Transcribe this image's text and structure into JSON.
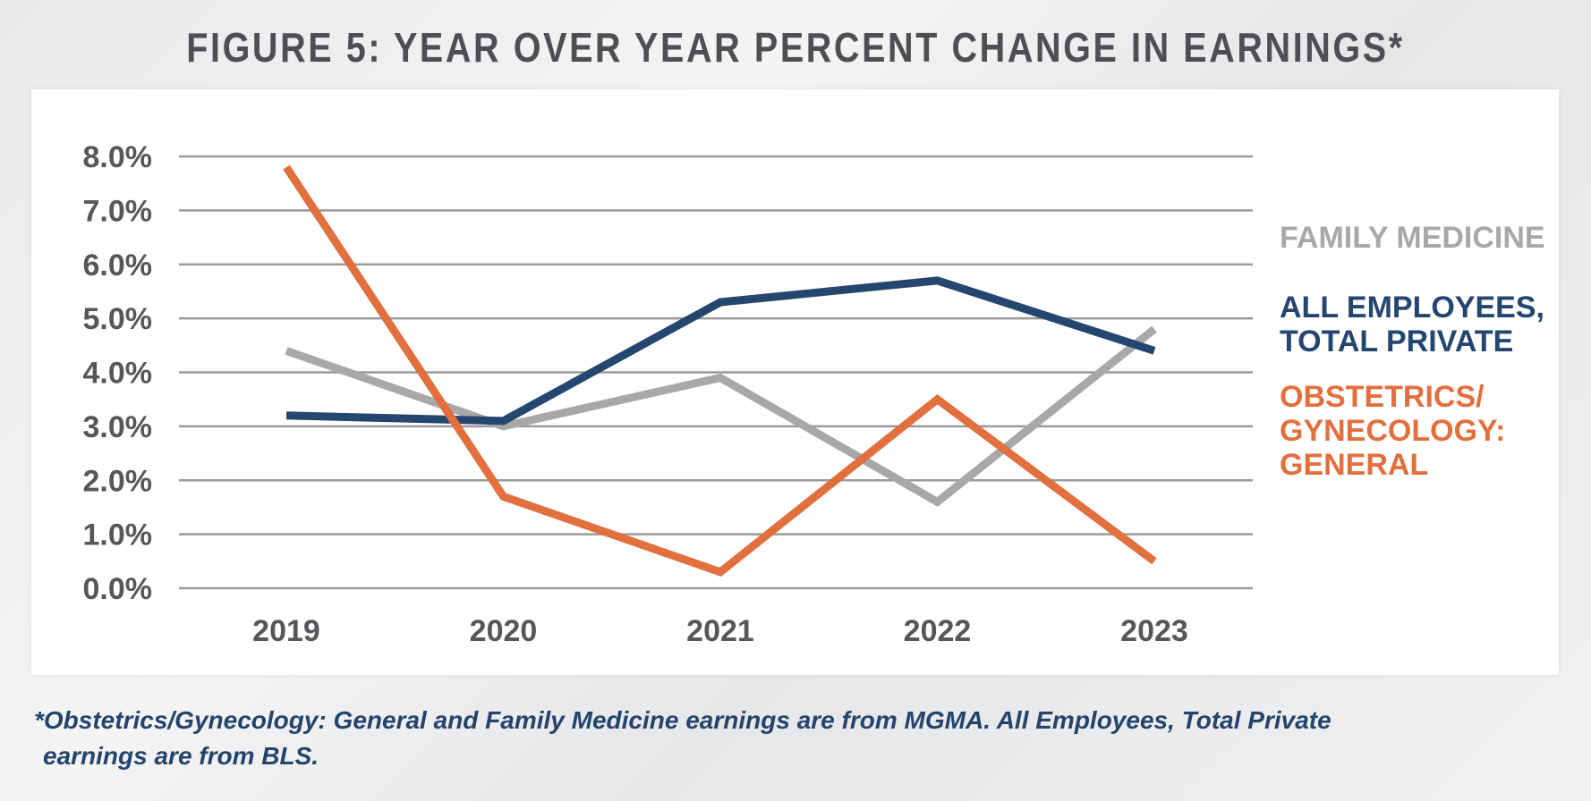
{
  "title": "FIGURE 5: YEAR OVER YEAR PERCENT CHANGE IN EARNINGS*",
  "footnote": {
    "line1": "*Obstetrics/Gynecology: General and Family Medicine earnings are from MGMA. All Employees, Total Private",
    "line2": "earnings are from BLS."
  },
  "colors": {
    "family": "#a7a8aa",
    "employees": "#24466f",
    "obgyn": "#e2703f",
    "grid": "#9a9a9a"
  },
  "legend": {
    "family": [
      "FAMILY MEDICINE"
    ],
    "employees": [
      "ALL EMPLOYEES,",
      "TOTAL PRIVATE"
    ],
    "obgyn": [
      "OBSTETRICS/",
      "GYNECOLOGY:",
      "GENERAL"
    ]
  },
  "chart_data": {
    "type": "line",
    "title": "FIGURE 5: YEAR OVER YEAR PERCENT CHANGE IN EARNINGS*",
    "xlabel": "",
    "ylabel": "",
    "categories": [
      "2019",
      "2020",
      "2021",
      "2022",
      "2023"
    ],
    "yticks": [
      "0.0%",
      "1.0%",
      "2.0%",
      "3.0%",
      "4.0%",
      "5.0%",
      "6.0%",
      "7.0%",
      "8.0%"
    ],
    "ylim": [
      0,
      8
    ],
    "grid": true,
    "legend_position": "right",
    "series": [
      {
        "name": "FAMILY MEDICINE",
        "key": "family",
        "values": [
          4.4,
          3.0,
          3.9,
          1.6,
          4.8
        ]
      },
      {
        "name": "ALL EMPLOYEES, TOTAL PRIVATE",
        "key": "employees",
        "values": [
          3.2,
          3.1,
          5.3,
          5.7,
          4.4
        ]
      },
      {
        "name": "OBSTETRICS/GYNECOLOGY: GENERAL",
        "key": "obgyn",
        "values": [
          7.8,
          1.7,
          0.3,
          3.5,
          0.5
        ]
      }
    ]
  }
}
